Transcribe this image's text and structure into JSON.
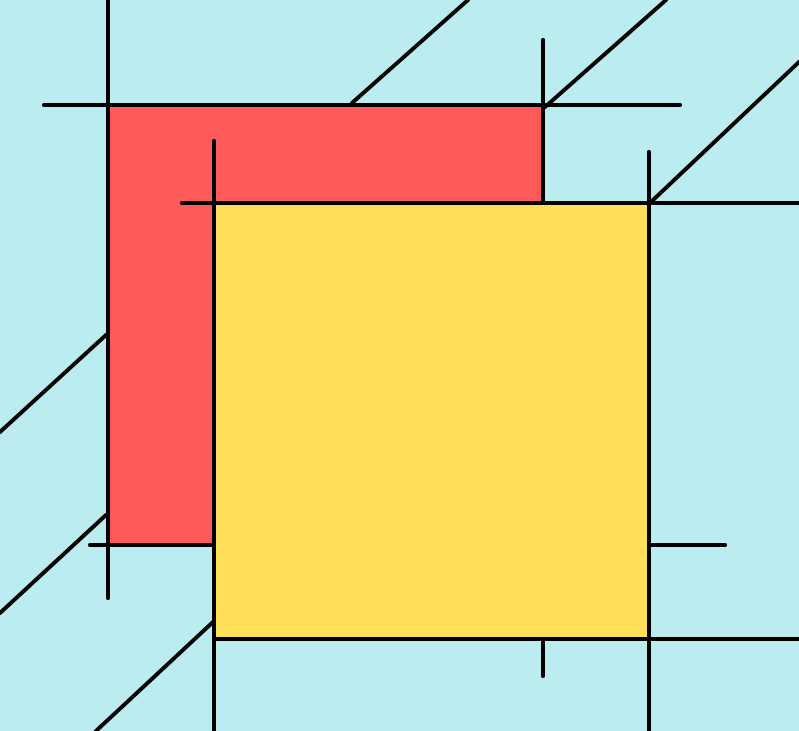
{
  "diagram": {
    "description_label": "",
    "colors": {
      "background": "#BBECEF",
      "back_square": "#FF5A5A",
      "front_square": "#FFDE5A",
      "stroke": "#000000"
    }
  }
}
